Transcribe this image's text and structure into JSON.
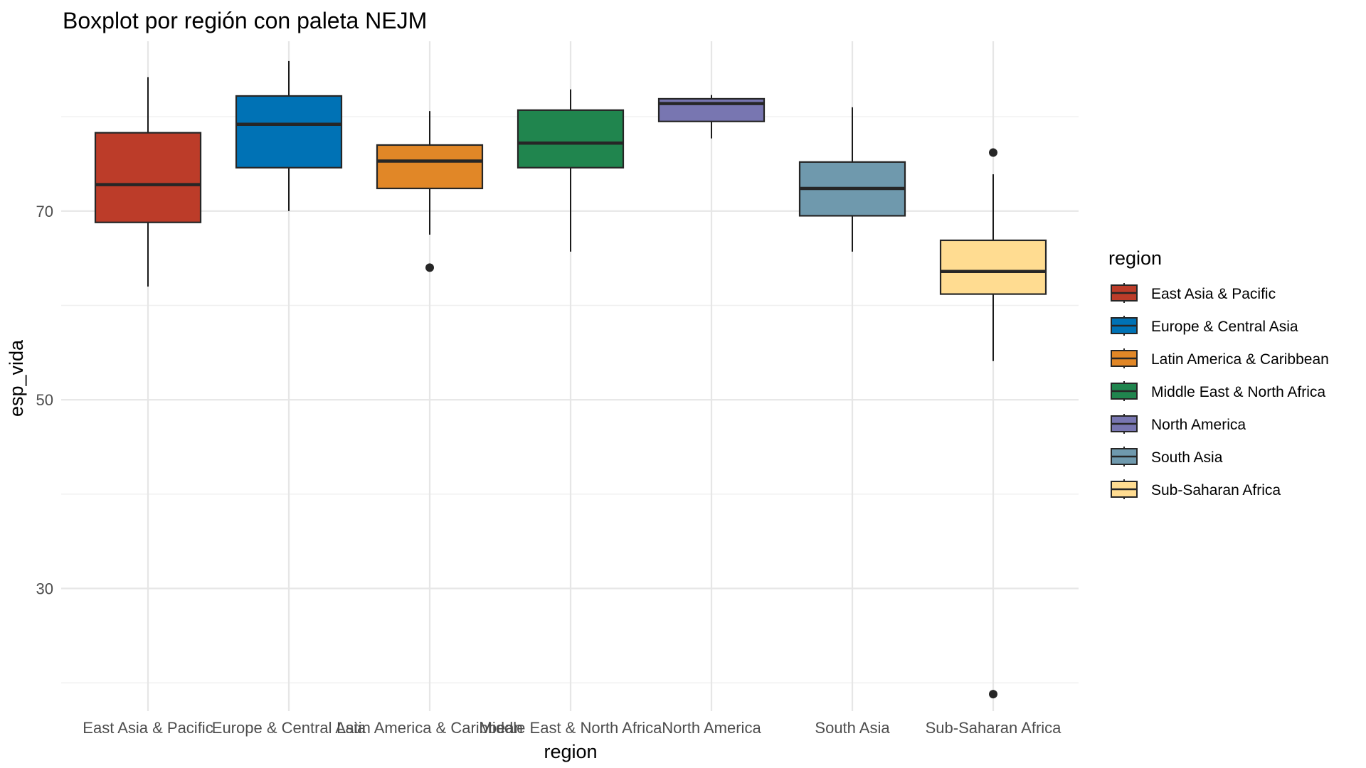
{
  "chart_data": {
    "type": "boxplot",
    "title": "Boxplot por región con paleta NEJM",
    "xlabel": "region",
    "ylabel": "esp_vida",
    "ylim": [
      17,
      88
    ],
    "yticks": [
      30,
      50,
      70
    ],
    "grid": true,
    "legend": {
      "title": "region",
      "position": "right"
    },
    "categories": [
      "East Asia & Pacific",
      "Europe & Central Asia",
      "Latin America & Caribbean",
      "Middle East & North Africa",
      "North America",
      "South Asia",
      "Sub-Saharan Africa"
    ],
    "colors": [
      "#BC3C29",
      "#0072B5",
      "#E18727",
      "#20854E",
      "#7876B1",
      "#6F99AD",
      "#FFDC91"
    ],
    "series": [
      {
        "name": "East Asia & Pacific",
        "whisker_low": 62.0,
        "q1": 68.8,
        "median": 72.8,
        "q3": 78.3,
        "whisker_high": 84.2,
        "outliers": []
      },
      {
        "name": "Europe & Central Asia",
        "whisker_low": 70.0,
        "q1": 74.6,
        "median": 79.2,
        "q3": 82.2,
        "whisker_high": 85.9,
        "outliers": []
      },
      {
        "name": "Latin America & Caribbean",
        "whisker_low": 67.5,
        "q1": 72.4,
        "median": 75.3,
        "q3": 77.0,
        "whisker_high": 80.6,
        "outliers": [
          64.0
        ]
      },
      {
        "name": "Middle East & North Africa",
        "whisker_low": 65.7,
        "q1": 74.6,
        "median": 77.2,
        "q3": 80.7,
        "whisker_high": 82.9,
        "outliers": []
      },
      {
        "name": "North America",
        "whisker_low": 77.7,
        "q1": 79.5,
        "median": 81.4,
        "q3": 81.9,
        "whisker_high": 82.3,
        "outliers": []
      },
      {
        "name": "South Asia",
        "whisker_low": 65.7,
        "q1": 69.5,
        "median": 72.4,
        "q3": 75.2,
        "whisker_high": 81.0,
        "outliers": []
      },
      {
        "name": "Sub-Saharan Africa",
        "whisker_low": 54.1,
        "q1": 61.2,
        "median": 63.6,
        "q3": 66.9,
        "whisker_high": 73.9,
        "outliers": [
          76.2,
          18.8
        ]
      }
    ]
  }
}
